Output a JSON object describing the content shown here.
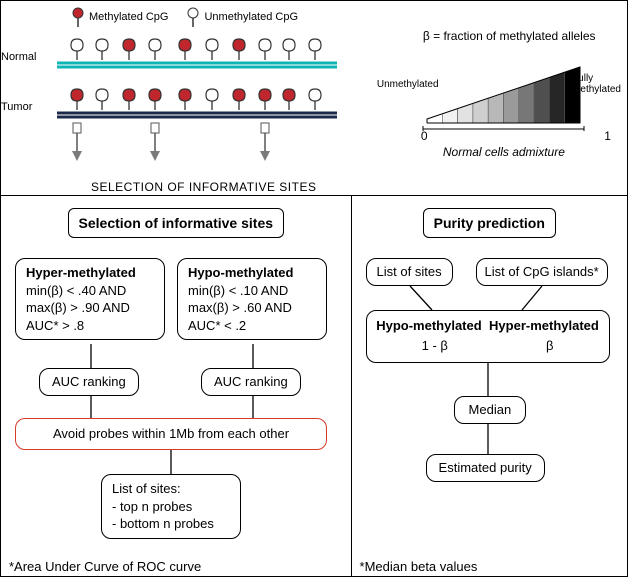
{
  "legend": {
    "methylated": "Methylated CpG",
    "unmethylated": "Unmethylated CpG"
  },
  "top_left": {
    "normal_label": "Normal",
    "tumor_label": "Tumor",
    "selection_text": "SELECTION OF INFORMATIVE SITES",
    "colors": {
      "normal_strand": "#0fb5b5",
      "tumor_strand": "#1b2a4a",
      "methylated_fill": "#c0272d",
      "unmethylated_fill": "#ffffff",
      "pin_stroke": "#333333",
      "arrow_fill": "#7b7b7b"
    },
    "cpg_sites": {
      "x_positions": [
        70,
        95,
        122,
        148,
        178,
        205,
        232,
        258,
        282,
        308
      ],
      "normal_methylated": [
        false,
        false,
        true,
        false,
        true,
        false,
        true,
        false,
        false,
        false
      ],
      "tumor_methylated": [
        true,
        false,
        true,
        true,
        true,
        false,
        true,
        true,
        true,
        false
      ],
      "informative_arrows_idx": [
        0,
        3,
        7
      ]
    }
  },
  "top_right": {
    "beta_formula": "β = fraction of methylated alleles",
    "unmethylated_label": "Unmethylated",
    "fully_label_1": "Fully",
    "fully_label_2": "methylated",
    "axis_min": "0",
    "axis_max": "1",
    "axis_title": "Normal cells admixture",
    "gradient_stops": [
      "#ffffff",
      "#f2f2f2",
      "#e2e2e2",
      "#cfcfcf",
      "#b8b8b8",
      "#9a9a9a",
      "#777777",
      "#4f4f4f",
      "#262626",
      "#000000"
    ]
  },
  "selection_panel": {
    "title": "Selection of informative sites",
    "hyper": {
      "heading": "Hyper-methylated",
      "line1": "min(β) < .40 AND",
      "line2": "max(β) > .90 AND",
      "line3": "AUC* > .8"
    },
    "hypo": {
      "heading": "Hypo-methylated",
      "line1": "min(β) < .10 AND",
      "line2": "max(β) > .60 AND",
      "line3": "AUC* < .2"
    },
    "auc_rank_left": "AUC ranking",
    "auc_rank_right": "AUC ranking",
    "avoid_probes": "Avoid probes within 1Mb from each other",
    "list_heading": "List of sites:",
    "list_item1": "- top n probes",
    "list_item2": "- bottom n probes",
    "footnote": "*Area Under Curve of ROC curve"
  },
  "purity_panel": {
    "title": "Purity prediction",
    "list_sites": "List of sites",
    "list_islands": "List of CpG islands*",
    "combo_heading_left": "Hypo-methylated",
    "combo_heading_right": "Hyper-methylated",
    "combo_val_left": "1 - β",
    "combo_val_right": "β",
    "median": "Median",
    "estimated": "Estimated purity",
    "footnote": "*Median beta values"
  },
  "layout": {
    "border_color": "#000000",
    "red_border": "#d63b2a",
    "font_base": 13
  }
}
